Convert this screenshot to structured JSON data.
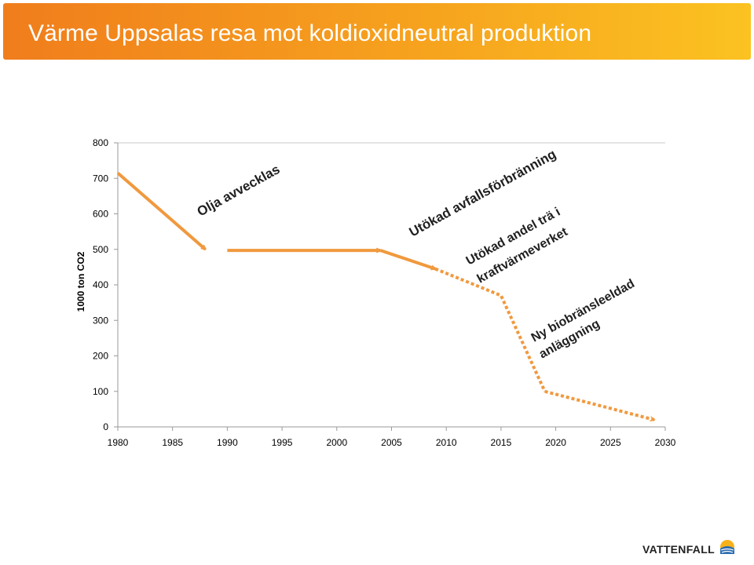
{
  "header": {
    "title": "Värme Uppsalas resa mot koldioxidneutral produktion"
  },
  "colors": {
    "accent": "#f0993e",
    "header_start": "#f07d1c",
    "header_end": "#fbc221",
    "logo_text": "#222222"
  },
  "logo": {
    "text": "VATTENFALL",
    "icon": "sun-icon"
  },
  "chart_data": {
    "type": "line",
    "title": "",
    "xlabel": "",
    "ylabel": "1000 ton CO2",
    "xlim": [
      1980,
      2030
    ],
    "ylim": [
      0,
      800
    ],
    "x_ticks": [
      1980,
      1985,
      1990,
      1995,
      2000,
      2005,
      2010,
      2015,
      2020,
      2025,
      2030
    ],
    "y_ticks": [
      0,
      100,
      200,
      300,
      400,
      500,
      600,
      700,
      800
    ],
    "grid": "horizontal-top-only",
    "series": [
      {
        "style": "solid-arrow",
        "x": [
          1980,
          1988
        ],
        "y": [
          715,
          500
        ]
      },
      {
        "style": "solid-arrow",
        "x": [
          1990,
          2004
        ],
        "y": [
          497,
          497
        ]
      },
      {
        "style": "solid-arrow",
        "x": [
          2004,
          2009
        ],
        "y": [
          497,
          445
        ]
      },
      {
        "style": "dotted",
        "x": [
          2009,
          2015,
          2019
        ],
        "y": [
          445,
          370,
          100
        ]
      },
      {
        "style": "dotted-arrow",
        "x": [
          2019,
          2029
        ],
        "y": [
          100,
          20
        ]
      }
    ],
    "annotations": [
      {
        "text": "Olja avvecklas"
      },
      {
        "text": "Utökad avfallsförbränning"
      },
      {
        "text": "Utökad andel trä i"
      },
      {
        "text": "kraftvärmeverket"
      },
      {
        "text": "Ny biobränsleeldad"
      },
      {
        "text": "anläggning"
      }
    ]
  }
}
